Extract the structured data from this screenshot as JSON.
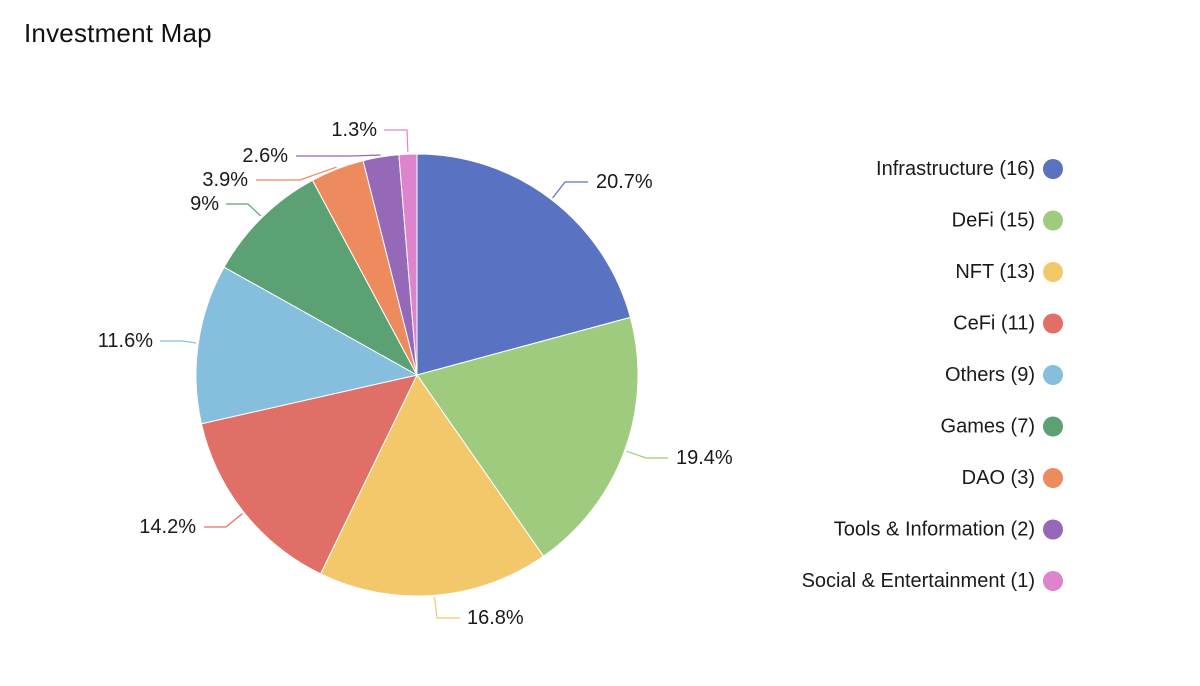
{
  "chart_data": {
    "type": "pie",
    "title": "Investment Map",
    "legend_position": "right",
    "series": [
      {
        "name": "Infrastructure",
        "count": 16,
        "value": 20.7,
        "label": "20.7%",
        "legend": "Infrastructure (16)",
        "color": "#5a72c2"
      },
      {
        "name": "DeFi",
        "count": 15,
        "value": 19.4,
        "label": "19.4%",
        "legend": "DeFi (15)",
        "color": "#9fcb7e"
      },
      {
        "name": "NFT",
        "count": 13,
        "value": 16.8,
        "label": "16.8%",
        "legend": "NFT (13)",
        "color": "#f3c86a"
      },
      {
        "name": "CeFi",
        "count": 11,
        "value": 14.2,
        "label": "14.2%",
        "legend": "CeFi (11)",
        "color": "#e06f67"
      },
      {
        "name": "Others",
        "count": 9,
        "value": 11.6,
        "label": "11.6%",
        "legend": "Others (9)",
        "color": "#85bfdd"
      },
      {
        "name": "Games",
        "count": 7,
        "value": 9,
        "label": "9%",
        "legend": "Games (7)",
        "color": "#5ba174"
      },
      {
        "name": "DAO",
        "count": 3,
        "value": 3.9,
        "label": "3.9%",
        "legend": "DAO (3)",
        "color": "#ee8b5e"
      },
      {
        "name": "Tools & Information",
        "count": 2,
        "value": 2.6,
        "label": "2.6%",
        "legend": "Tools & Information (2)",
        "color": "#9568b8"
      },
      {
        "name": "Social & Entertainment",
        "count": 1,
        "value": 1.3,
        "label": "1.3%",
        "legend": "Social & Entertainment (1)",
        "color": "#dd84cc"
      }
    ]
  }
}
